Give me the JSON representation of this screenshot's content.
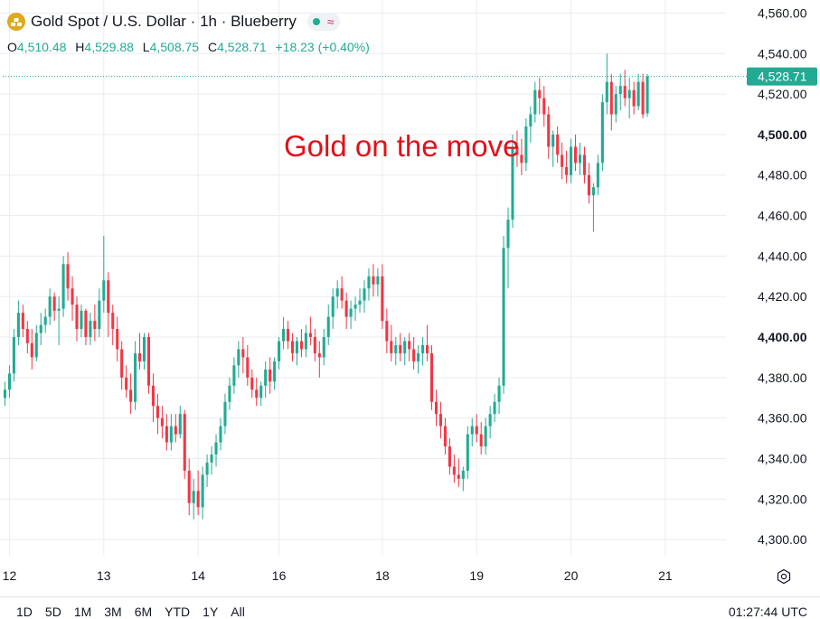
{
  "header": {
    "title": "Gold Spot / U.S. Dollar · 1h · Blueberry",
    "ohlc": [
      {
        "label": "O",
        "value": "4,510.48"
      },
      {
        "label": "H",
        "value": "4,529.88"
      },
      {
        "label": "L",
        "value": "4,508.75"
      },
      {
        "label": "C",
        "value": "4,528.71"
      }
    ],
    "change": "+18.23 (+0.40%)"
  },
  "annotation": "Gold on the move",
  "price_label": "4,528.71",
  "bottom_bar": {
    "ranges": [
      "1D",
      "5D",
      "1M",
      "3M",
      "6M",
      "YTD",
      "1Y",
      "All"
    ],
    "clock": "01:27:44 UTC"
  },
  "colors": {
    "up": "#22ab94",
    "down": "#f23645",
    "annotation": "#e0111b",
    "price_line": "#22ab94",
    "grid": "#e9ecf1"
  },
  "icons": {
    "symbol": "gold-bars-icon",
    "status": "market-open-dot-icon",
    "wave": "wave-icon",
    "settings": "gear-icon"
  },
  "chart_data": {
    "type": "candlestick",
    "interval": "1h",
    "y_axis": {
      "range": [
        4292,
        4562
      ],
      "ticks": [
        4300,
        4320,
        4340,
        4360,
        4380,
        4400,
        4420,
        4440,
        4460,
        4480,
        4500,
        4520,
        4540,
        4560
      ],
      "tick_labels": [
        "4,300.00",
        "4,320.00",
        "4,340.00",
        "4,360.00",
        "4,380.00",
        "4,400.00",
        "4,420.00",
        "4,440.00",
        "4,460.00",
        "4,480.00",
        "4,500.00",
        "4,520.00",
        "4,540.00",
        "4,560.00"
      ],
      "bold_labels": [
        "4,400.00",
        "4,500.00"
      ]
    },
    "x_axis": {
      "range": [
        0,
        161
      ],
      "ticks": [
        {
          "x": 1,
          "label": "12"
        },
        {
          "x": 22,
          "label": "13"
        },
        {
          "x": 43,
          "label": "14"
        },
        {
          "x": 61,
          "label": "16"
        },
        {
          "x": 84,
          "label": "18"
        },
        {
          "x": 105,
          "label": "19"
        },
        {
          "x": 126,
          "label": "20"
        },
        {
          "x": 147,
          "label": "21"
        }
      ]
    },
    "last_price": 4528.71,
    "candles": [
      [
        4370,
        4378,
        4366,
        4374
      ],
      [
        4374,
        4386,
        4370,
        4382
      ],
      [
        4382,
        4404,
        4378,
        4400
      ],
      [
        4400,
        4418,
        4396,
        4412
      ],
      [
        4412,
        4416,
        4400,
        4404
      ],
      [
        4404,
        4408,
        4392,
        4397
      ],
      [
        4397,
        4404,
        4384,
        4390
      ],
      [
        4390,
        4406,
        4388,
        4402
      ],
      [
        4402,
        4412,
        4396,
        4406
      ],
      [
        4406,
        4414,
        4402,
        4410
      ],
      [
        4410,
        4424,
        4406,
        4420
      ],
      [
        4420,
        4422,
        4408,
        4413
      ],
      [
        4413,
        4420,
        4396,
        4414
      ],
      [
        4414,
        4440,
        4410,
        4436
      ],
      [
        4436,
        4442,
        4418,
        4424
      ],
      [
        4424,
        4430,
        4408,
        4416
      ],
      [
        4416,
        4420,
        4398,
        4404
      ],
      [
        4404,
        4416,
        4400,
        4413
      ],
      [
        4413,
        4414,
        4396,
        4400
      ],
      [
        4400,
        4412,
        4396,
        4408
      ],
      [
        4408,
        4416,
        4398,
        4404
      ],
      [
        4404,
        4424,
        4400,
        4418
      ],
      [
        4418,
        4450,
        4412,
        4428
      ],
      [
        4428,
        4432,
        4400,
        4412
      ],
      [
        4412,
        4416,
        4396,
        4404
      ],
      [
        4404,
        4410,
        4388,
        4394
      ],
      [
        4394,
        4398,
        4374,
        4380
      ],
      [
        4380,
        4386,
        4370,
        4374
      ],
      [
        4374,
        4382,
        4362,
        4368
      ],
      [
        4368,
        4398,
        4364,
        4392
      ],
      [
        4392,
        4402,
        4384,
        4388
      ],
      [
        4388,
        4402,
        4384,
        4400
      ],
      [
        4400,
        4402,
        4372,
        4376
      ],
      [
        4376,
        4382,
        4358,
        4366
      ],
      [
        4366,
        4372,
        4352,
        4360
      ],
      [
        4360,
        4366,
        4350,
        4356
      ],
      [
        4356,
        4362,
        4344,
        4348
      ],
      [
        4348,
        4362,
        4344,
        4356
      ],
      [
        4356,
        4362,
        4348,
        4352
      ],
      [
        4352,
        4366,
        4350,
        4362
      ],
      [
        4362,
        4364,
        4330,
        4334
      ],
      [
        4334,
        4340,
        4312,
        4318
      ],
      [
        4318,
        4330,
        4310,
        4324
      ],
      [
        4324,
        4334,
        4312,
        4316
      ],
      [
        4316,
        4336,
        4310,
        4332
      ],
      [
        4332,
        4342,
        4326,
        4338
      ],
      [
        4338,
        4346,
        4332,
        4342
      ],
      [
        4342,
        4352,
        4336,
        4348
      ],
      [
        4348,
        4360,
        4344,
        4356
      ],
      [
        4356,
        4372,
        4352,
        4368
      ],
      [
        4368,
        4380,
        4364,
        4376
      ],
      [
        4376,
        4390,
        4372,
        4386
      ],
      [
        4386,
        4398,
        4380,
        4394
      ],
      [
        4394,
        4400,
        4382,
        4390
      ],
      [
        4390,
        4396,
        4376,
        4380
      ],
      [
        4380,
        4384,
        4370,
        4374
      ],
      [
        4374,
        4380,
        4366,
        4370
      ],
      [
        4370,
        4378,
        4366,
        4376
      ],
      [
        4376,
        4388,
        4370,
        4384
      ],
      [
        4384,
        4390,
        4372,
        4378
      ],
      [
        4378,
        4390,
        4374,
        4388
      ],
      [
        4388,
        4400,
        4384,
        4398
      ],
      [
        4398,
        4410,
        4394,
        4404
      ],
      [
        4404,
        4408,
        4394,
        4398
      ],
      [
        4398,
        4402,
        4388,
        4392
      ],
      [
        4392,
        4400,
        4386,
        4398
      ],
      [
        4398,
        4404,
        4390,
        4394
      ],
      [
        4394,
        4406,
        4390,
        4402
      ],
      [
        4402,
        4410,
        4396,
        4400
      ],
      [
        4400,
        4404,
        4388,
        4392
      ],
      [
        4392,
        4398,
        4380,
        4390
      ],
      [
        4390,
        4404,
        4386,
        4400
      ],
      [
        4400,
        4416,
        4396,
        4410
      ],
      [
        4410,
        4424,
        4404,
        4420
      ],
      [
        4420,
        4428,
        4414,
        4424
      ],
      [
        4424,
        4430,
        4414,
        4418
      ],
      [
        4418,
        4422,
        4404,
        4410
      ],
      [
        4410,
        4418,
        4404,
        4414
      ],
      [
        4414,
        4420,
        4408,
        4416
      ],
      [
        4416,
        4424,
        4412,
        4418
      ],
      [
        4418,
        4428,
        4412,
        4424
      ],
      [
        4424,
        4434,
        4418,
        4430
      ],
      [
        4430,
        4436,
        4420,
        4426
      ],
      [
        4426,
        4434,
        4420,
        4430
      ],
      [
        4430,
        4436,
        4404,
        4408
      ],
      [
        4408,
        4414,
        4392,
        4398
      ],
      [
        4398,
        4406,
        4388,
        4392
      ],
      [
        4392,
        4400,
        4386,
        4396
      ],
      [
        4396,
        4402,
        4388,
        4392
      ],
      [
        4392,
        4400,
        4386,
        4398
      ],
      [
        4398,
        4402,
        4388,
        4394
      ],
      [
        4394,
        4400,
        4384,
        4388
      ],
      [
        4388,
        4396,
        4382,
        4392
      ],
      [
        4392,
        4400,
        4386,
        4396
      ],
      [
        4396,
        4406,
        4388,
        4392
      ],
      [
        4392,
        4396,
        4364,
        4368
      ],
      [
        4368,
        4374,
        4356,
        4362
      ],
      [
        4362,
        4368,
        4350,
        4356
      ],
      [
        4356,
        4360,
        4342,
        4346
      ],
      [
        4346,
        4350,
        4332,
        4336
      ],
      [
        4336,
        4342,
        4328,
        4332
      ],
      [
        4332,
        4340,
        4326,
        4330
      ],
      [
        4330,
        4336,
        4324,
        4334
      ],
      [
        4334,
        4356,
        4330,
        4352
      ],
      [
        4352,
        4360,
        4346,
        4356
      ],
      [
        4356,
        4362,
        4348,
        4352
      ],
      [
        4352,
        4358,
        4342,
        4346
      ],
      [
        4346,
        4360,
        4342,
        4356
      ],
      [
        4356,
        4366,
        4350,
        4362
      ],
      [
        4362,
        4372,
        4358,
        4368
      ],
      [
        4368,
        4380,
        4362,
        4376
      ],
      [
        4376,
        4450,
        4372,
        4444
      ],
      [
        4444,
        4464,
        4424,
        4458
      ],
      [
        4458,
        4500,
        4454,
        4494
      ],
      [
        4494,
        4502,
        4484,
        4490
      ],
      [
        4490,
        4498,
        4480,
        4486
      ],
      [
        4486,
        4508,
        4482,
        4504
      ],
      [
        4504,
        4514,
        4496,
        4510
      ],
      [
        4510,
        4526,
        4506,
        4522
      ],
      [
        4522,
        4528,
        4510,
        4518
      ],
      [
        4518,
        4524,
        4504,
        4510
      ],
      [
        4510,
        4514,
        4488,
        4494
      ],
      [
        4494,
        4502,
        4484,
        4500
      ],
      [
        4500,
        4504,
        4486,
        4490
      ],
      [
        4490,
        4496,
        4478,
        4484
      ],
      [
        4484,
        4492,
        4476,
        4480
      ],
      [
        4480,
        4498,
        4476,
        4494
      ],
      [
        4494,
        4500,
        4482,
        4486
      ],
      [
        4486,
        4496,
        4480,
        4490
      ],
      [
        4490,
        4494,
        4476,
        4480
      ],
      [
        4480,
        4486,
        4466,
        4470
      ],
      [
        4470,
        4476,
        4452,
        4474
      ],
      [
        4474,
        4490,
        4470,
        4486
      ],
      [
        4486,
        4520,
        4482,
        4516
      ],
      [
        4516,
        4540,
        4510,
        4526
      ],
      [
        4526,
        4530,
        4502,
        4510
      ],
      [
        4510,
        4524,
        4506,
        4520
      ],
      [
        4520,
        4530,
        4512,
        4524
      ],
      [
        4524,
        4532,
        4514,
        4518
      ],
      [
        4518,
        4528,
        4508,
        4522
      ],
      [
        4522,
        4526,
        4510,
        4514
      ],
      [
        4514,
        4530,
        4512,
        4526
      ],
      [
        4526,
        4530,
        4508,
        4510
      ],
      [
        4510.48,
        4529.88,
        4508.75,
        4528.71
      ]
    ]
  }
}
